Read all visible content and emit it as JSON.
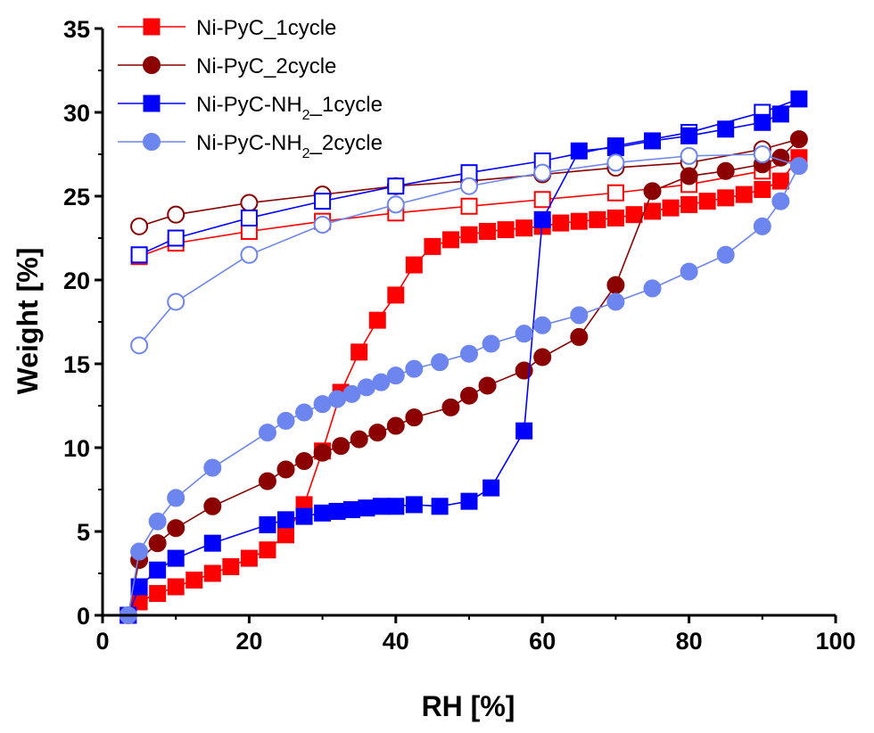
{
  "chart_data": {
    "type": "scatter",
    "xlabel": "RH [%]",
    "ylabel": "Weight [%]",
    "xlim": [
      0,
      100
    ],
    "ylim": [
      0,
      35
    ],
    "x_ticks": [
      "0",
      "20",
      "40",
      "60",
      "80",
      "100"
    ],
    "y_ticks": [
      "0",
      "5",
      "10",
      "15",
      "20",
      "25",
      "30",
      "35"
    ],
    "grid": false,
    "legend_position": "top-left",
    "series": [
      {
        "name": "Ni-PyC_1cycle",
        "label_main": "Ni-PyC_1cycle",
        "label_sub": "",
        "label_tail": "",
        "color": "#ff0000",
        "marker": "square",
        "adsorption": [
          [
            3.5,
            0
          ],
          [
            5,
            0.8
          ],
          [
            7.5,
            1.3
          ],
          [
            10,
            1.7
          ],
          [
            12.5,
            2.1
          ],
          [
            15,
            2.5
          ],
          [
            17.5,
            2.9
          ],
          [
            20,
            3.4
          ],
          [
            22.5,
            3.9
          ],
          [
            25,
            4.8
          ],
          [
            27.5,
            6.6
          ],
          [
            30,
            9.8
          ],
          [
            32.5,
            13.3
          ],
          [
            35,
            15.7
          ],
          [
            37.5,
            17.6
          ],
          [
            40,
            19.1
          ],
          [
            42.5,
            20.9
          ],
          [
            45,
            22
          ],
          [
            47.5,
            22.4
          ],
          [
            50,
            22.7
          ],
          [
            52.5,
            22.9
          ],
          [
            55,
            23
          ],
          [
            57.5,
            23.1
          ],
          [
            60,
            23.2
          ],
          [
            62.5,
            23.4
          ],
          [
            65,
            23.5
          ],
          [
            67.5,
            23.6
          ],
          [
            70,
            23.7
          ],
          [
            72.5,
            23.9
          ],
          [
            75,
            24.1
          ],
          [
            77.5,
            24.3
          ],
          [
            80,
            24.5
          ],
          [
            82.5,
            24.7
          ],
          [
            85,
            24.9
          ],
          [
            87.5,
            25.1
          ],
          [
            90,
            25.4
          ],
          [
            92.5,
            25.9
          ],
          [
            95,
            27.3
          ]
        ],
        "desorption": [
          [
            95,
            27.3
          ],
          [
            90,
            26.5
          ],
          [
            80,
            25.7
          ],
          [
            70,
            25.2
          ],
          [
            60,
            24.8
          ],
          [
            50,
            24.4
          ],
          [
            40,
            24
          ],
          [
            30,
            23.5
          ],
          [
            20,
            22.9
          ],
          [
            10,
            22.2
          ],
          [
            5,
            21.4
          ]
        ]
      },
      {
        "name": "Ni-PyC_2cycle",
        "label_main": "Ni-PyC_2cycle",
        "label_sub": "",
        "label_tail": "",
        "color": "#8b0000",
        "marker": "circle",
        "adsorption": [
          [
            3.5,
            0
          ],
          [
            5,
            3.3
          ],
          [
            7.5,
            4.3
          ],
          [
            10,
            5.2
          ],
          [
            15,
            6.5
          ],
          [
            22.5,
            8
          ],
          [
            25,
            8.7
          ],
          [
            27.5,
            9.2
          ],
          [
            30,
            9.7
          ],
          [
            32.5,
            10.1
          ],
          [
            35,
            10.5
          ],
          [
            37.5,
            10.9
          ],
          [
            40,
            11.3
          ],
          [
            42.5,
            11.8
          ],
          [
            47.5,
            12.4
          ],
          [
            50,
            13.1
          ],
          [
            52.5,
            13.7
          ],
          [
            57.5,
            14.6
          ],
          [
            60,
            15.4
          ],
          [
            65,
            16.6
          ],
          [
            70,
            19.7
          ],
          [
            75,
            25.3
          ],
          [
            80,
            26.2
          ],
          [
            85,
            26.5
          ],
          [
            90,
            26.9
          ],
          [
            92.5,
            27.3
          ],
          [
            95,
            28.4
          ]
        ],
        "desorption": [
          [
            95,
            28.4
          ],
          [
            90,
            27.8
          ],
          [
            80,
            27
          ],
          [
            70,
            26.7
          ],
          [
            60,
            26.3
          ],
          [
            50,
            25.9
          ],
          [
            40,
            25.6
          ],
          [
            30,
            25.1
          ],
          [
            20,
            24.6
          ],
          [
            10,
            23.9
          ],
          [
            5,
            23.2
          ]
        ]
      },
      {
        "name": "Ni-PyC-NH2_1cycle",
        "label_main": "Ni-PyC-NH",
        "label_sub": "2",
        "label_tail": "_1cycle",
        "color": "#0000ff",
        "marker": "square",
        "adsorption": [
          [
            3.5,
            0
          ],
          [
            5,
            1.7
          ],
          [
            7.5,
            2.7
          ],
          [
            10,
            3.4
          ],
          [
            15,
            4.3
          ],
          [
            22.5,
            5.4
          ],
          [
            25,
            5.7
          ],
          [
            27.5,
            5.9
          ],
          [
            30,
            6.1
          ],
          [
            32,
            6.2
          ],
          [
            34,
            6.3
          ],
          [
            36,
            6.4
          ],
          [
            38,
            6.5
          ],
          [
            40,
            6.5
          ],
          [
            42.5,
            6.6
          ],
          [
            46,
            6.5
          ],
          [
            50,
            6.8
          ],
          [
            53,
            7.6
          ],
          [
            57.5,
            11
          ],
          [
            60,
            23.6
          ],
          [
            65,
            27.7
          ],
          [
            70,
            27.9
          ],
          [
            75,
            28.3
          ],
          [
            80,
            28.6
          ],
          [
            85,
            29
          ],
          [
            90,
            29.4
          ],
          [
            92.5,
            29.9
          ],
          [
            95,
            30.8
          ]
        ],
        "desorption": [
          [
            95,
            30.8
          ],
          [
            90,
            30
          ],
          [
            80,
            28.8
          ],
          [
            70,
            28
          ],
          [
            60,
            27.1
          ],
          [
            50,
            26.4
          ],
          [
            40,
            25.6
          ],
          [
            30,
            24.7
          ],
          [
            20,
            23.7
          ],
          [
            10,
            22.5
          ],
          [
            5,
            21.5
          ]
        ]
      },
      {
        "name": "Ni-PyC-NH2_2cycle",
        "label_main": "Ni-PyC-NH",
        "label_sub": "2",
        "label_tail": "_2cycle",
        "color": "#6d85ee",
        "marker": "circle",
        "adsorption": [
          [
            3.5,
            0
          ],
          [
            5,
            3.8
          ],
          [
            7.5,
            5.6
          ],
          [
            10,
            7
          ],
          [
            15,
            8.8
          ],
          [
            22.5,
            10.9
          ],
          [
            25,
            11.6
          ],
          [
            27.5,
            12.1
          ],
          [
            30,
            12.6
          ],
          [
            32,
            12.9
          ],
          [
            34,
            13.2
          ],
          [
            36,
            13.6
          ],
          [
            38,
            13.9
          ],
          [
            40,
            14.3
          ],
          [
            42.5,
            14.7
          ],
          [
            46,
            15.1
          ],
          [
            50,
            15.6
          ],
          [
            53,
            16.2
          ],
          [
            57.5,
            16.8
          ],
          [
            60,
            17.3
          ],
          [
            65,
            17.9
          ],
          [
            70,
            18.7
          ],
          [
            75,
            19.5
          ],
          [
            80,
            20.5
          ],
          [
            85,
            21.5
          ],
          [
            90,
            23.2
          ],
          [
            92.5,
            24.7
          ],
          [
            95,
            26.8
          ]
        ],
        "desorption": [
          [
            95,
            26.8
          ],
          [
            90,
            27.5
          ],
          [
            80,
            27.4
          ],
          [
            70,
            27
          ],
          [
            60,
            26.4
          ],
          [
            50,
            25.6
          ],
          [
            40,
            24.5
          ],
          [
            30,
            23.3
          ],
          [
            20,
            21.5
          ],
          [
            10,
            18.7
          ],
          [
            5,
            16.1
          ]
        ]
      }
    ]
  }
}
